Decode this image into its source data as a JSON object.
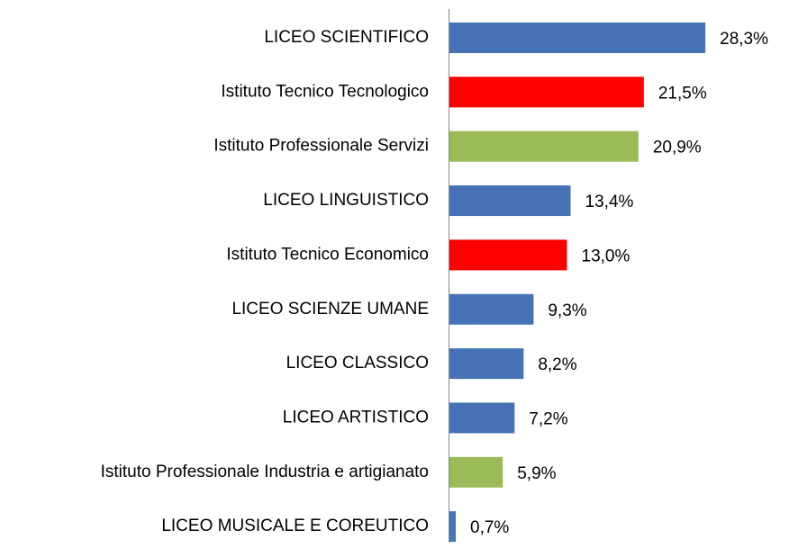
{
  "chart_data": {
    "type": "barh",
    "categories": [
      "LICEO SCIENTIFICO",
      "Istituto Tecnico Tecnologico",
      "Istituto Professionale Servizi",
      "LICEO LINGUISTICO",
      "Istituto Tecnico Economico",
      "LICEO SCIENZE UMANE",
      "LICEO CLASSICO",
      "LICEO ARTISTICO",
      "Istituto Professionale Industria e artigianato",
      "LICEO MUSICALE E COREUTICO"
    ],
    "values": [
      28.3,
      21.5,
      20.9,
      13.4,
      13.0,
      9.3,
      8.2,
      7.2,
      5.9,
      0.7
    ],
    "value_labels": [
      "28,3%",
      "21,5%",
      "20,9%",
      "13,4%",
      "13,0%",
      "9,3%",
      "8,2%",
      "7,2%",
      "5,9%",
      "0,7%"
    ],
    "colors": [
      "#4573b5",
      "#ff0000",
      "#9bbb59",
      "#4573b5",
      "#ff0000",
      "#4573b5",
      "#4573b5",
      "#4573b5",
      "#9bbb59",
      "#4573b5"
    ]
  }
}
